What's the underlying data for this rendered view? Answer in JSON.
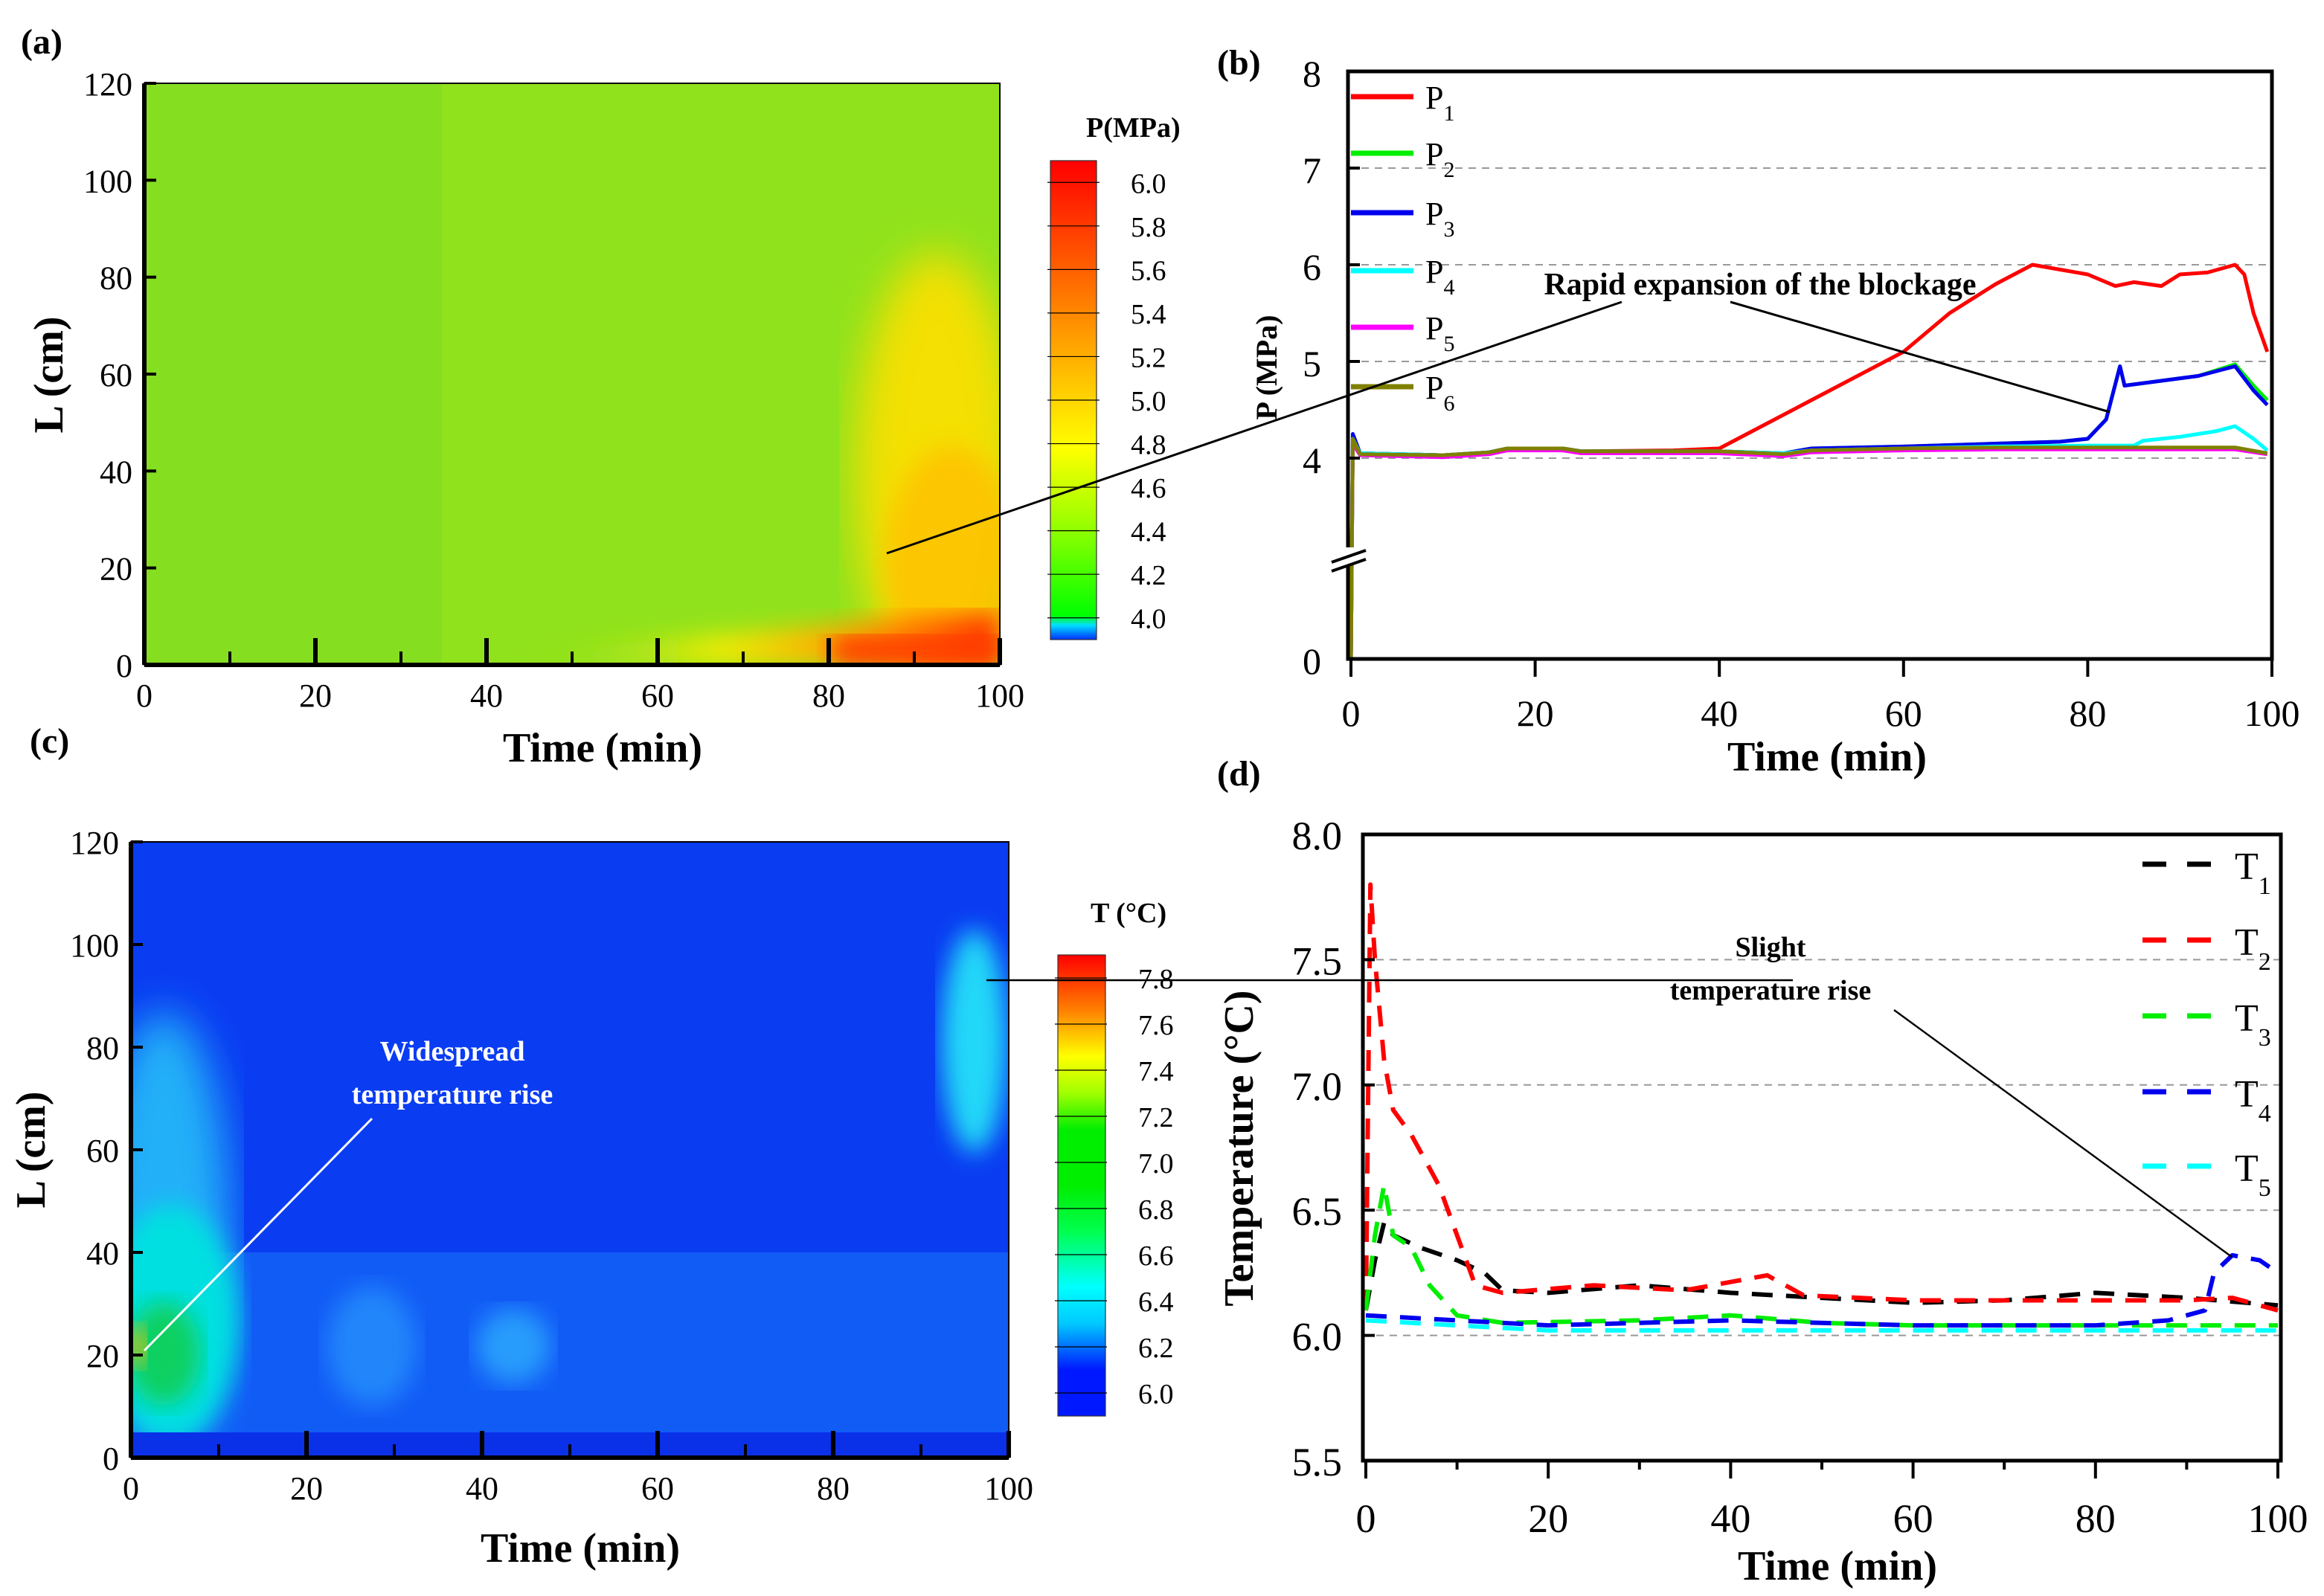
{
  "panel_labels": [
    "(a)",
    "(b)",
    "(c)",
    "(d)"
  ],
  "chart_data": [
    {
      "type": "heatmap",
      "panel": "(a)",
      "xlabel": "Time (min)",
      "ylabel": "L (cm)",
      "xlim": [
        0,
        100
      ],
      "ylim": [
        0,
        120
      ],
      "xticks": [
        "0",
        "20",
        "40",
        "60",
        "80",
        "100"
      ],
      "yticks": [
        "0",
        "20",
        "40",
        "60",
        "80",
        "100",
        "120"
      ],
      "colorbar": {
        "title": "P(MPa)",
        "ticks": [
          "6.0",
          "5.8",
          "5.6",
          "5.4",
          "5.2",
          "5.0",
          "4.8",
          "4.6",
          "4.4",
          "4.2",
          "4.0"
        ],
        "range": [
          3.9,
          6.1
        ]
      }
    },
    {
      "type": "line",
      "panel": "(b)",
      "xlabel": "Time (min)",
      "ylabel": "P (MPa)",
      "xlim": [
        0,
        100
      ],
      "ylim": [
        0,
        8
      ],
      "y_axis_break": [
        0,
        4
      ],
      "xticks": [
        "0",
        "20",
        "40",
        "60",
        "80",
        "100"
      ],
      "yticks": [
        "0",
        "4",
        "5",
        "6",
        "7",
        "8"
      ],
      "grid": "horizontal dashed",
      "legend": "top-left",
      "annotation": "Rapid expansion of the blockage",
      "series": [
        {
          "name": "P1",
          "sub": "1",
          "color": "#ff0000",
          "x": [
            0,
            0.2,
            1,
            10,
            15,
            17,
            23,
            25,
            35,
            40,
            42,
            50,
            60,
            65,
            70,
            74,
            77,
            80,
            83,
            85,
            88,
            90,
            93,
            96,
            97,
            98,
            99.5
          ],
          "y": [
            0,
            4.2,
            4.05,
            4.03,
            4.06,
            4.1,
            4.1,
            4.07,
            4.08,
            4.1,
            4.2,
            4.6,
            5.1,
            5.5,
            5.8,
            6.0,
            5.95,
            5.9,
            5.78,
            5.82,
            5.78,
            5.9,
            5.92,
            6.0,
            5.9,
            5.5,
            5.1
          ]
        },
        {
          "name": "P2",
          "sub": "2",
          "color": "#00ee00",
          "x": [
            0,
            0.2,
            1,
            10,
            15,
            17,
            23,
            25,
            40,
            47,
            50,
            60,
            70,
            77,
            80,
            82,
            83.5,
            84,
            88,
            92,
            96,
            98,
            99.5
          ],
          "y": [
            0,
            4.2,
            4.05,
            4.03,
            4.06,
            4.1,
            4.1,
            4.07,
            4.07,
            4.05,
            4.1,
            4.12,
            4.15,
            4.17,
            4.2,
            4.4,
            4.95,
            4.75,
            4.8,
            4.85,
            4.97,
            4.75,
            4.6
          ]
        },
        {
          "name": "P3",
          "sub": "3",
          "color": "#0000ee",
          "x": [
            0,
            0.2,
            1,
            10,
            15,
            17,
            23,
            25,
            40,
            47,
            50,
            60,
            70,
            77,
            80,
            82,
            83.5,
            84,
            88,
            92,
            96,
            98,
            99.5
          ],
          "y": [
            0,
            4.25,
            4.05,
            4.03,
            4.06,
            4.1,
            4.1,
            4.07,
            4.07,
            4.05,
            4.1,
            4.12,
            4.15,
            4.17,
            4.2,
            4.4,
            4.95,
            4.75,
            4.8,
            4.85,
            4.95,
            4.7,
            4.55
          ]
        },
        {
          "name": "P4",
          "sub": "4",
          "color": "#00ffff",
          "x": [
            0,
            0.2,
            1,
            10,
            15,
            17,
            23,
            25,
            40,
            47,
            50,
            60,
            70,
            80,
            85,
            86,
            90,
            94,
            96,
            98,
            99.5
          ],
          "y": [
            0,
            4.2,
            4.05,
            4.03,
            4.06,
            4.1,
            4.1,
            4.07,
            4.07,
            4.05,
            4.08,
            4.1,
            4.12,
            4.13,
            4.13,
            4.18,
            4.22,
            4.28,
            4.33,
            4.2,
            4.08
          ]
        },
        {
          "name": "P5",
          "sub": "5",
          "color": "#ff00ff",
          "x": [
            0,
            0.2,
            1,
            10,
            15,
            17,
            23,
            25,
            40,
            47,
            50,
            60,
            70,
            80,
            90,
            96,
            99.5
          ],
          "y": [
            0,
            4.15,
            4.03,
            4.01,
            4.04,
            4.08,
            4.08,
            4.05,
            4.05,
            4.02,
            4.06,
            4.08,
            4.09,
            4.09,
            4.09,
            4.09,
            4.04
          ]
        },
        {
          "name": "P6",
          "sub": "6",
          "color": "#808000",
          "x": [
            0,
            0.2,
            1,
            10,
            15,
            17,
            23,
            25,
            40,
            47,
            50,
            60,
            70,
            80,
            90,
            96,
            99.5
          ],
          "y": [
            0,
            4.2,
            4.04,
            4.03,
            4.06,
            4.1,
            4.1,
            4.07,
            4.07,
            4.04,
            4.08,
            4.1,
            4.11,
            4.11,
            4.11,
            4.11,
            4.05
          ]
        }
      ]
    },
    {
      "type": "heatmap",
      "panel": "(c)",
      "xlabel": "Time (min)",
      "ylabel": "L (cm)",
      "xlim": [
        0,
        100
      ],
      "ylim": [
        0,
        120
      ],
      "xticks": [
        "0",
        "20",
        "40",
        "60",
        "80",
        "100"
      ],
      "yticks": [
        "0",
        "20",
        "40",
        "60",
        "80",
        "100",
        "120"
      ],
      "annotation": [
        "Widespread",
        "temperature rise"
      ],
      "colorbar": {
        "title": "T (°C)",
        "ticks": [
          "7.8",
          "7.6",
          "7.4",
          "7.2",
          "7.0",
          "6.8",
          "6.6",
          "6.4",
          "6.2",
          "6.0"
        ],
        "range": [
          5.9,
          7.9
        ]
      }
    },
    {
      "type": "line",
      "panel": "(d)",
      "xlabel": "Time (min)",
      "ylabel": "Temperature (°C)",
      "xlim": [
        0,
        100
      ],
      "ylim": [
        5.5,
        8.0
      ],
      "xticks": [
        "0",
        "20",
        "40",
        "60",
        "80",
        "100"
      ],
      "yticks": [
        "5.5",
        "6.0",
        "6.5",
        "7.0",
        "7.5",
        "8.0"
      ],
      "grid": "horizontal dashed",
      "line_style": "dashed",
      "legend": "top-right",
      "annotation": [
        "Slight",
        "temperature rise"
      ],
      "series": [
        {
          "name": "T1",
          "sub": "1",
          "color": "#000000",
          "x": [
            0,
            1,
            2,
            3,
            6,
            10,
            13,
            15,
            20,
            30,
            40,
            50,
            60,
            70,
            80,
            90,
            100
          ],
          "y": [
            6.1,
            6.3,
            6.45,
            6.4,
            6.35,
            6.3,
            6.25,
            6.18,
            6.17,
            6.2,
            6.17,
            6.15,
            6.13,
            6.14,
            6.17,
            6.15,
            6.12
          ]
        },
        {
          "name": "T2",
          "sub": "2",
          "color": "#ff0000",
          "x": [
            0,
            0.5,
            1,
            2,
            3,
            5,
            8,
            10,
            12,
            15,
            25,
            35,
            44,
            48,
            60,
            80,
            90,
            95,
            100
          ],
          "y": [
            6.1,
            7.8,
            7.5,
            7.1,
            6.9,
            6.8,
            6.6,
            6.4,
            6.2,
            6.17,
            6.2,
            6.18,
            6.24,
            6.16,
            6.14,
            6.14,
            6.14,
            6.15,
            6.1
          ]
        },
        {
          "name": "T3",
          "sub": "3",
          "color": "#00ee00",
          "x": [
            0,
            1,
            2,
            3,
            5,
            7,
            10,
            15,
            30,
            40,
            50,
            60,
            80,
            100
          ],
          "y": [
            6.1,
            6.4,
            6.6,
            6.4,
            6.35,
            6.2,
            6.08,
            6.05,
            6.06,
            6.08,
            6.05,
            6.04,
            6.04,
            6.04
          ]
        },
        {
          "name": "T4",
          "sub": "4",
          "color": "#0000ee",
          "x": [
            0,
            10,
            20,
            40,
            60,
            80,
            88,
            92,
            93,
            95,
            98,
            100
          ],
          "y": [
            6.08,
            6.06,
            6.04,
            6.06,
            6.04,
            6.04,
            6.06,
            6.1,
            6.25,
            6.32,
            6.3,
            6.25
          ]
        },
        {
          "name": "T5",
          "sub": "5",
          "color": "#00ffff",
          "x": [
            0,
            10,
            20,
            50,
            100
          ],
          "y": [
            6.06,
            6.04,
            6.02,
            6.02,
            6.02
          ]
        }
      ]
    }
  ]
}
